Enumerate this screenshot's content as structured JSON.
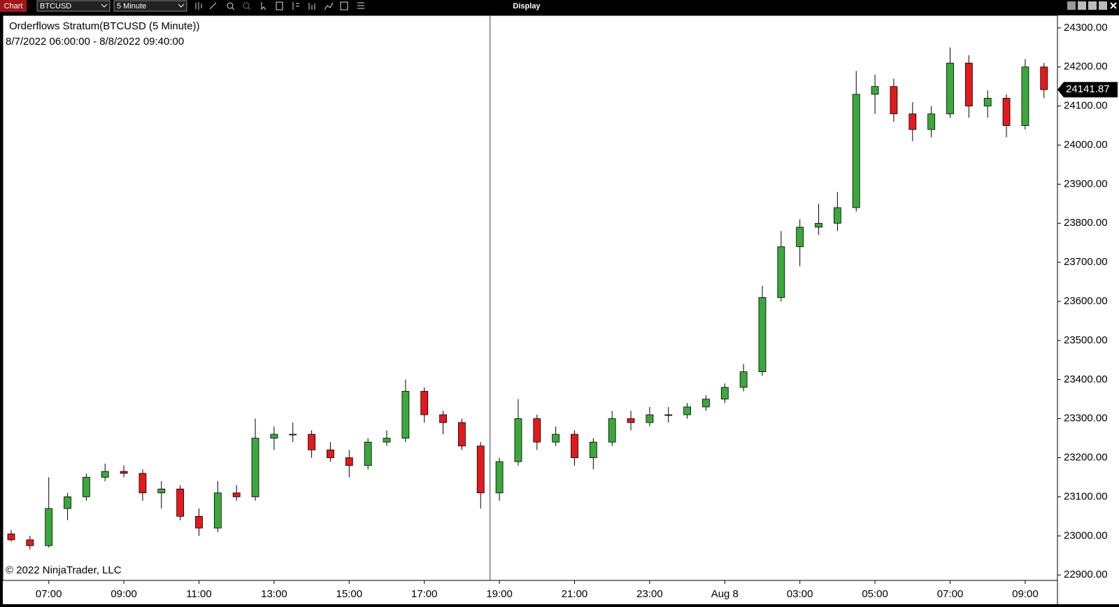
{
  "toolbar": {
    "chart_tab": "Chart",
    "instrument": "BTCUSD",
    "interval": "5 Minute",
    "title": "Display"
  },
  "chart_data": {
    "type": "candlestick",
    "title": "Orderflows Stratum(BTCUSD (5 Minute))",
    "subtitle": "8/7/2022 06:00:00 - 8/8/2022 09:40:00",
    "copyright": "© 2022 NinjaTrader, LLC",
    "categories": [
      null,
      null,
      "07:00",
      null,
      null,
      null,
      "09:00",
      null,
      null,
      null,
      "11:00",
      null,
      null,
      null,
      "13:00",
      null,
      null,
      null,
      "15:00",
      null,
      null,
      null,
      "17:00",
      null,
      null,
      null,
      "19:00",
      null,
      null,
      null,
      "21:00",
      null,
      null,
      null,
      "23:00",
      null,
      null,
      null,
      "Aug 8",
      null,
      null,
      null,
      "03:00",
      null,
      null,
      null,
      "05:00",
      null,
      null,
      null,
      "07:00",
      null,
      null,
      null,
      "09:00",
      null
    ],
    "open": [
      23005,
      22990,
      22975,
      23070,
      23100,
      23150,
      23165,
      23160,
      23110,
      23120,
      23050,
      23020,
      23110,
      23100,
      23250,
      23260,
      23260,
      23220,
      23200,
      23180,
      23240,
      23250,
      23370,
      23310,
      23290,
      23230,
      23110,
      23190,
      23300,
      23240,
      23260,
      23200,
      23240,
      23300,
      23290,
      23310,
      23310,
      23330,
      23350,
      23380,
      23420,
      23610,
      23740,
      23790,
      23800,
      23840,
      24130,
      24150,
      24080,
      24040,
      24080,
      24210,
      24100,
      24120,
      24050,
      24200
    ],
    "high": [
      23015,
      23000,
      23150,
      23110,
      23160,
      23185,
      23180,
      23170,
      23140,
      23130,
      23070,
      23140,
      23130,
      23300,
      23280,
      23290,
      23270,
      23240,
      23220,
      23250,
      23270,
      23400,
      23380,
      23320,
      23300,
      23240,
      23200,
      23350,
      23310,
      23280,
      23270,
      23250,
      23320,
      23320,
      23330,
      23330,
      23340,
      23360,
      23390,
      23440,
      23640,
      23780,
      23810,
      23850,
      23880,
      24190,
      24180,
      24170,
      24110,
      24100,
      24250,
      24230,
      24140,
      24130,
      24220,
      24210
    ],
    "low": [
      22985,
      22965,
      22970,
      23040,
      23090,
      23140,
      23150,
      23090,
      23070,
      23040,
      23000,
      23010,
      23090,
      23090,
      23220,
      23240,
      23200,
      23190,
      23150,
      23170,
      23230,
      23240,
      23290,
      23260,
      23220,
      23070,
      23090,
      23180,
      23220,
      23230,
      23180,
      23170,
      23230,
      23270,
      23280,
      23290,
      23300,
      23320,
      23340,
      23370,
      23410,
      23600,
      23690,
      23770,
      23780,
      23830,
      24080,
      24060,
      24010,
      24020,
      24070,
      24070,
      24070,
      24020,
      24040,
      24120
    ],
    "close": [
      22990,
      22975,
      23070,
      23100,
      23150,
      23165,
      23160,
      23110,
      23120,
      23050,
      23020,
      23110,
      23100,
      23250,
      23260,
      23260,
      23220,
      23200,
      23180,
      23240,
      23250,
      23370,
      23310,
      23290,
      23230,
      23110,
      23190,
      23300,
      23240,
      23260,
      23200,
      23240,
      23300,
      23290,
      23310,
      23310,
      23330,
      23350,
      23380,
      23420,
      23610,
      23740,
      23790,
      23800,
      23840,
      24130,
      24150,
      24080,
      24040,
      24080,
      24210,
      24100,
      24120,
      24050,
      24200,
      24142
    ],
    "last_price": 24141.87,
    "up_color": "#3aa83a",
    "down_color": "#e3191b",
    "ylim": [
      22886,
      24332
    ],
    "yticks": [
      {
        "value": 22900,
        "label": "22900.00"
      },
      {
        "value": 23000,
        "label": "23000.00"
      },
      {
        "value": 23100,
        "label": "23100.00"
      },
      {
        "value": 23200,
        "label": "23200.00"
      },
      {
        "value": 23300,
        "label": "23300.00"
      },
      {
        "value": 23400,
        "label": "23400.00"
      },
      {
        "value": 23500,
        "label": "23500.00"
      },
      {
        "value": 23600,
        "label": "23600.00"
      },
      {
        "value": 23700,
        "label": "23700.00"
      },
      {
        "value": 23800,
        "label": "23800.00"
      },
      {
        "value": 23900,
        "label": "23900.00"
      },
      {
        "value": 24000,
        "label": "24000.00"
      },
      {
        "value": 24100,
        "label": "24100.00"
      },
      {
        "value": 24200,
        "label": "24200.00"
      },
      {
        "value": 24300,
        "label": "24300.00"
      }
    ],
    "grid": false
  }
}
